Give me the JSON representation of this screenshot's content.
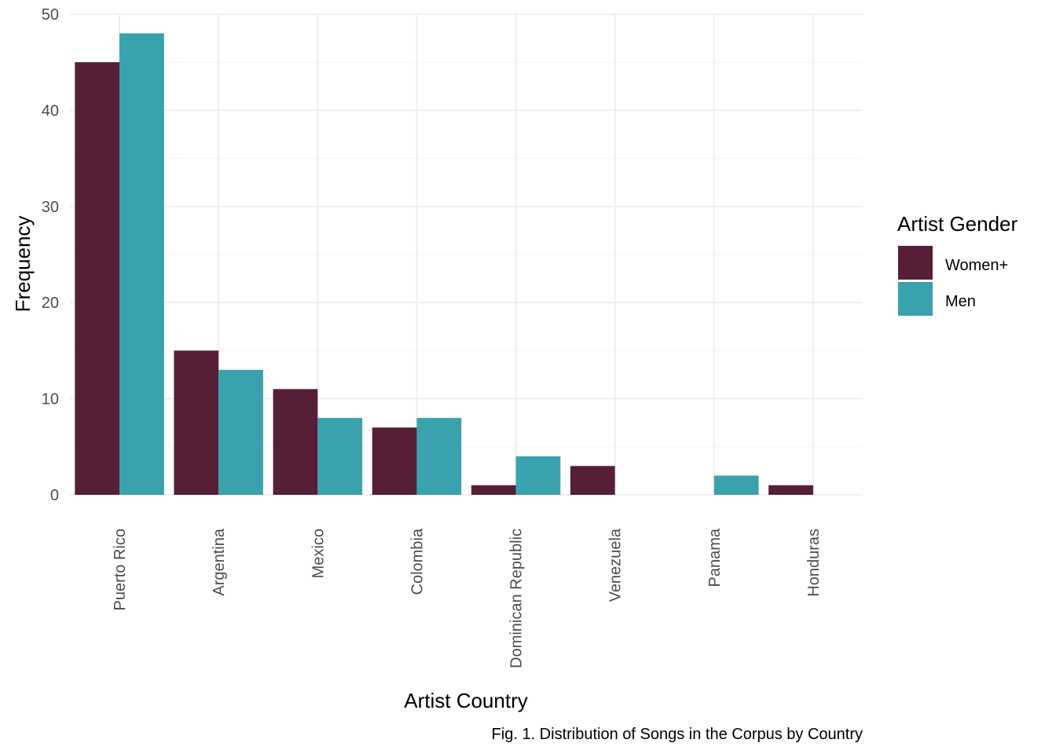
{
  "chart_data": {
    "type": "bar",
    "categories": [
      "Puerto Rico",
      "Argentina",
      "Mexico",
      "Colombia",
      "Dominican Republic",
      "Venezuela",
      "Panama",
      "Honduras"
    ],
    "series": [
      {
        "name": "Women+",
        "color": "#561f37",
        "values": [
          45,
          15,
          11,
          7,
          1,
          3,
          0,
          1
        ]
      },
      {
        "name": "Men",
        "color": "#39a2ae",
        "values": [
          48,
          13,
          8,
          8,
          4,
          0,
          2,
          0
        ]
      }
    ],
    "xlabel": "Artist Country",
    "ylabel": "Frequency",
    "ylim": [
      0,
      50
    ],
    "yticks": [
      0,
      10,
      20,
      30,
      40,
      50
    ],
    "legend": {
      "title": "Artist Gender",
      "placement": "right"
    },
    "caption": "Fig. 1. Distribution of Songs in the Corpus by Country",
    "grid": true
  }
}
